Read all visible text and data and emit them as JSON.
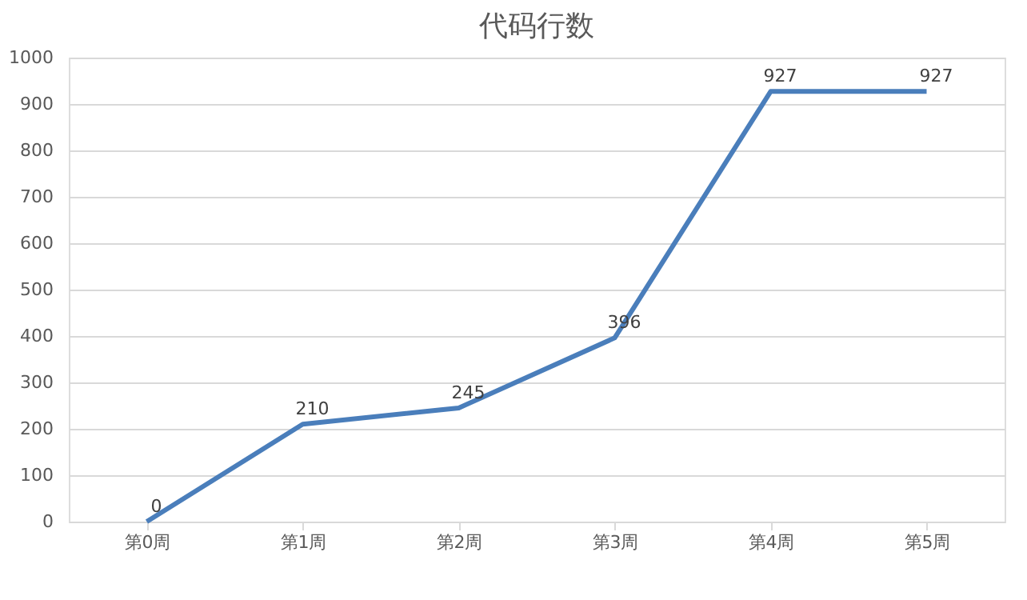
{
  "chart_data": {
    "type": "line",
    "title": "代码行数",
    "categories": [
      "第0周",
      "第1周",
      "第2周",
      "第3周",
      "第4周",
      "第5周"
    ],
    "series": [
      {
        "color": "#4a7ebb",
        "values": [
          0,
          210,
          245,
          396,
          927,
          927
        ]
      }
    ],
    "ylim": [
      0,
      1000
    ],
    "yticks": [
      0,
      100,
      200,
      300,
      400,
      500,
      600,
      700,
      800,
      900,
      1000
    ],
    "grid": "y",
    "data_labels": true,
    "marker": "none",
    "line_style": "solid",
    "legend": false
  }
}
